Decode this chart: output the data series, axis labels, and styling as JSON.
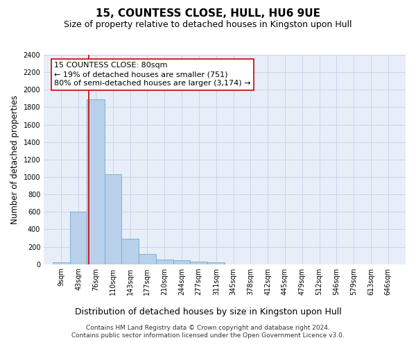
{
  "title": "15, COUNTESS CLOSE, HULL, HU6 9UE",
  "subtitle": "Size of property relative to detached houses in Kingston upon Hull",
  "xlabel_bottom": "Distribution of detached houses by size in Kingston upon Hull",
  "ylabel": "Number of detached properties",
  "footer_line1": "Contains HM Land Registry data © Crown copyright and database right 2024.",
  "footer_line2": "Contains public sector information licensed under the Open Government Licence v3.0.",
  "bar_edges": [
    9,
    43,
    76,
    110,
    143,
    177,
    210,
    244,
    277,
    311,
    345,
    378,
    412,
    445,
    479,
    512,
    546,
    579,
    613,
    646,
    680
  ],
  "bar_values": [
    20,
    600,
    1890,
    1030,
    290,
    120,
    50,
    45,
    30,
    20,
    0,
    0,
    0,
    0,
    0,
    0,
    0,
    0,
    0,
    0
  ],
  "bar_color": "#b8d0ea",
  "bar_edgecolor": "#6aaad4",
  "property_size": 80,
  "vline_color": "#cc0000",
  "annotation_line1": "15 COUNTESS CLOSE: 80sqm",
  "annotation_line2": "← 19% of detached houses are smaller (751)",
  "annotation_line3": "80% of semi-detached houses are larger (3,174) →",
  "annotation_box_color": "#cc0000",
  "ylim": [
    0,
    2400
  ],
  "yticks": [
    0,
    200,
    400,
    600,
    800,
    1000,
    1200,
    1400,
    1600,
    1800,
    2000,
    2200,
    2400
  ],
  "grid_color": "#c8d4e8",
  "bg_color": "#e8eef8",
  "title_fontsize": 11,
  "subtitle_fontsize": 9,
  "tick_fontsize": 7,
  "ylabel_fontsize": 8.5,
  "annotation_fontsize": 8,
  "footer_fontsize": 6.5
}
